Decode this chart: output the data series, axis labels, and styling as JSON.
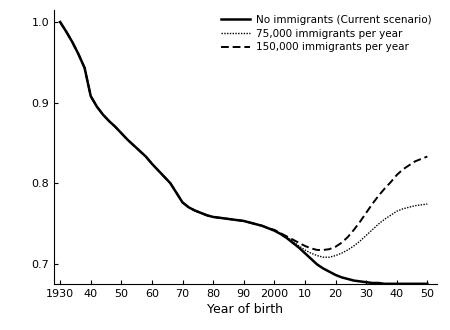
{
  "title": "",
  "xlabel": "Year of birth",
  "ylabel": "",
  "xlim": [
    1928,
    2053
  ],
  "ylim": [
    0.675,
    1.015
  ],
  "yticks": [
    0.7,
    0.8,
    0.9,
    1.0
  ],
  "ytick_labels": [
    "0.7",
    "0.8",
    "0.9",
    "1.0"
  ],
  "xtick_positions": [
    1930,
    1940,
    1950,
    1960,
    1970,
    1980,
    1990,
    2000,
    2010,
    2020,
    2030,
    2050
  ],
  "xtick_labels": [
    "1930",
    "40",
    "50",
    "60",
    "70",
    "80",
    "90",
    "2000",
    "10",
    "20",
    "30",
    "50"
  ],
  "background_color": "#ffffff",
  "line_color": "#000000",
  "legend_entries": [
    "No immigrants (Current scenario)",
    "75,000 immigrants per year",
    "150,000 immigrants per year"
  ],
  "no_immig_x": [
    1930,
    1932,
    1934,
    1936,
    1938,
    1940,
    1942,
    1944,
    1946,
    1948,
    1950,
    1952,
    1954,
    1956,
    1958,
    1960,
    1962,
    1964,
    1966,
    1968,
    1970,
    1972,
    1974,
    1976,
    1978,
    1980,
    1982,
    1984,
    1986,
    1988,
    1990,
    1992,
    1994,
    1996,
    1998,
    2000,
    2002,
    2004,
    2006,
    2008,
    2010,
    2012,
    2014,
    2016,
    2018,
    2020,
    2022,
    2024,
    2026,
    2028,
    2030,
    2032,
    2034,
    2036,
    2038,
    2040,
    2042,
    2044,
    2046,
    2048,
    2050
  ],
  "no_immig_y": [
    1.0,
    0.988,
    0.975,
    0.96,
    0.943,
    0.908,
    0.895,
    0.885,
    0.877,
    0.87,
    0.862,
    0.854,
    0.847,
    0.84,
    0.833,
    0.824,
    0.816,
    0.808,
    0.8,
    0.788,
    0.776,
    0.77,
    0.766,
    0.763,
    0.76,
    0.758,
    0.757,
    0.756,
    0.755,
    0.754,
    0.753,
    0.751,
    0.749,
    0.747,
    0.744,
    0.741,
    0.737,
    0.732,
    0.726,
    0.72,
    0.713,
    0.706,
    0.699,
    0.694,
    0.69,
    0.686,
    0.683,
    0.681,
    0.679,
    0.678,
    0.677,
    0.676,
    0.676,
    0.675,
    0.675,
    0.675,
    0.675,
    0.675,
    0.675,
    0.675,
    0.675
  ],
  "imm75_x": [
    1930,
    1932,
    1934,
    1936,
    1938,
    1940,
    1942,
    1944,
    1946,
    1948,
    1950,
    1952,
    1954,
    1956,
    1958,
    1960,
    1962,
    1964,
    1966,
    1968,
    1970,
    1972,
    1974,
    1976,
    1978,
    1980,
    1982,
    1984,
    1986,
    1988,
    1990,
    1992,
    1994,
    1996,
    1998,
    2000,
    2002,
    2004,
    2006,
    2008,
    2010,
    2012,
    2014,
    2016,
    2018,
    2020,
    2022,
    2024,
    2026,
    2028,
    2030,
    2032,
    2034,
    2036,
    2038,
    2040,
    2042,
    2044,
    2046,
    2048,
    2050
  ],
  "imm75_y": [
    1.0,
    0.988,
    0.975,
    0.96,
    0.943,
    0.908,
    0.895,
    0.885,
    0.877,
    0.87,
    0.862,
    0.854,
    0.847,
    0.84,
    0.833,
    0.824,
    0.816,
    0.808,
    0.8,
    0.788,
    0.776,
    0.77,
    0.766,
    0.763,
    0.76,
    0.758,
    0.757,
    0.756,
    0.755,
    0.754,
    0.753,
    0.751,
    0.749,
    0.747,
    0.744,
    0.741,
    0.737,
    0.733,
    0.728,
    0.722,
    0.717,
    0.713,
    0.71,
    0.708,
    0.708,
    0.71,
    0.713,
    0.717,
    0.722,
    0.728,
    0.735,
    0.742,
    0.749,
    0.755,
    0.76,
    0.765,
    0.768,
    0.77,
    0.772,
    0.773,
    0.774
  ],
  "imm150_x": [
    1930,
    1932,
    1934,
    1936,
    1938,
    1940,
    1942,
    1944,
    1946,
    1948,
    1950,
    1952,
    1954,
    1956,
    1958,
    1960,
    1962,
    1964,
    1966,
    1968,
    1970,
    1972,
    1974,
    1976,
    1978,
    1980,
    1982,
    1984,
    1986,
    1988,
    1990,
    1992,
    1994,
    1996,
    1998,
    2000,
    2002,
    2004,
    2006,
    2008,
    2010,
    2012,
    2014,
    2016,
    2018,
    2020,
    2022,
    2024,
    2026,
    2028,
    2030,
    2032,
    2034,
    2036,
    2038,
    2040,
    2042,
    2044,
    2046,
    2048,
    2050
  ],
  "imm150_y": [
    1.0,
    0.988,
    0.975,
    0.96,
    0.943,
    0.908,
    0.895,
    0.885,
    0.877,
    0.87,
    0.862,
    0.854,
    0.847,
    0.84,
    0.833,
    0.824,
    0.816,
    0.808,
    0.8,
    0.788,
    0.776,
    0.77,
    0.766,
    0.763,
    0.76,
    0.758,
    0.757,
    0.756,
    0.755,
    0.754,
    0.753,
    0.751,
    0.749,
    0.747,
    0.744,
    0.742,
    0.738,
    0.734,
    0.73,
    0.726,
    0.722,
    0.719,
    0.717,
    0.717,
    0.718,
    0.721,
    0.726,
    0.733,
    0.742,
    0.752,
    0.763,
    0.774,
    0.784,
    0.793,
    0.801,
    0.81,
    0.817,
    0.822,
    0.827,
    0.83,
    0.833
  ]
}
